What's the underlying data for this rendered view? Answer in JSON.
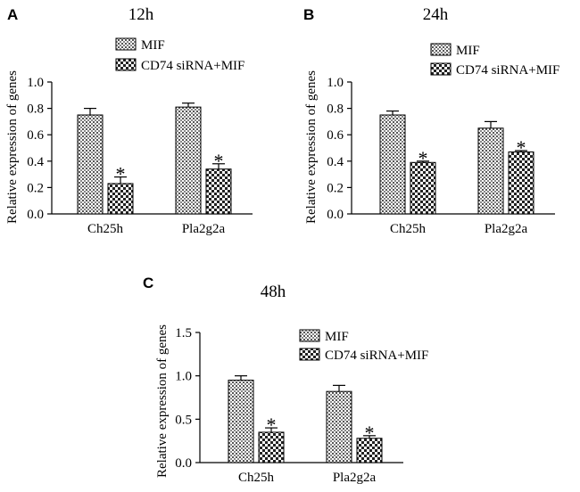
{
  "chart_data": [
    {
      "panel": "A",
      "type": "bar",
      "title": "12h",
      "ylabel": "Relative expression of genes",
      "xlabel": "",
      "ylim": [
        0,
        1.0
      ],
      "yticks": [
        "0.0",
        "0.2",
        "0.4",
        "0.6",
        "0.8",
        "1.0"
      ],
      "categories": [
        "Ch25h",
        "Pla2g2a"
      ],
      "series": [
        {
          "name": "MIF",
          "pattern": "dots",
          "values": [
            0.75,
            0.81
          ],
          "errors": [
            0.05,
            0.03
          ]
        },
        {
          "name": "CD74 siRNA+MIF",
          "pattern": "checker",
          "values": [
            0.23,
            0.34
          ],
          "errors": [
            0.05,
            0.04
          ]
        }
      ],
      "significance": [
        "*",
        "*"
      ],
      "legend": "top"
    },
    {
      "panel": "B",
      "type": "bar",
      "title": "24h",
      "ylabel": "Relative expression of genes",
      "xlabel": "",
      "ylim": [
        0,
        1.0
      ],
      "yticks": [
        "0.0",
        "0.2",
        "0.4",
        "0.6",
        "0.8",
        "1.0"
      ],
      "categories": [
        "Ch25h",
        "Pla2g2a"
      ],
      "series": [
        {
          "name": "MIF",
          "pattern": "dots",
          "values": [
            0.75,
            0.65
          ],
          "errors": [
            0.03,
            0.05
          ]
        },
        {
          "name": "CD74 siRNA+MIF",
          "pattern": "checker",
          "values": [
            0.39,
            0.47
          ],
          "errors": [
            0.01,
            0.01
          ]
        }
      ],
      "significance": [
        "*",
        "*"
      ],
      "legend": "top"
    },
    {
      "panel": "C",
      "type": "bar",
      "title": "48h",
      "ylabel": "Relative expression of genes",
      "xlabel": "",
      "ylim": [
        0,
        1.5
      ],
      "yticks": [
        "0.0",
        "0.5",
        "1.0",
        "1.5"
      ],
      "categories": [
        "Ch25h",
        "Pla2g2a"
      ],
      "series": [
        {
          "name": "MIF",
          "pattern": "dots",
          "values": [
            0.95,
            0.82
          ],
          "errors": [
            0.05,
            0.07
          ]
        },
        {
          "name": "CD74 siRNA+MIF",
          "pattern": "checker",
          "values": [
            0.35,
            0.28
          ],
          "errors": [
            0.05,
            0.03
          ]
        }
      ],
      "significance": [
        "*",
        "*"
      ],
      "legend": "top"
    }
  ]
}
